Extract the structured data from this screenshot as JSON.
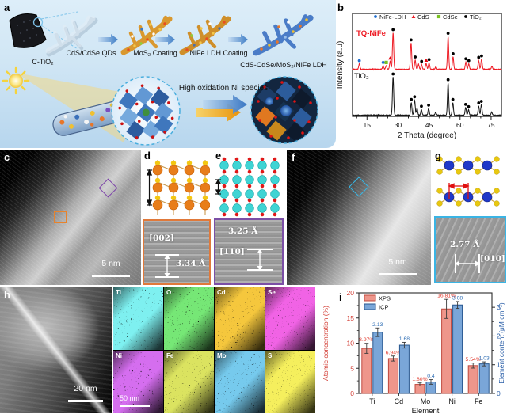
{
  "panel_a": {
    "label": "a",
    "precursor_label": "C-TiO₂",
    "step1_label": "CdS/CdSe QDs",
    "step2_label": "MoS₂ Coating",
    "step3_label": "NiFe LDH Coating",
    "product_label": "CdS-CdSe/MoS₂/NiFe LDH",
    "annotation": "High oxidation Ni species"
  },
  "panel_b": {
    "label": "b"
  },
  "panel_c": {
    "label": "c",
    "scale_bar": "5 nm"
  },
  "panel_d": {
    "label": "d",
    "plane": "[002]",
    "spacing": "3.34 Å"
  },
  "panel_e": {
    "label": "e",
    "plane": "[110]",
    "spacing": "3.25 Å"
  },
  "panel_f": {
    "label": "f",
    "scale_bar": "5 nm"
  },
  "panel_g": {
    "label": "g",
    "plane": "[010]",
    "spacing": "2.77 Å"
  },
  "panel_h": {
    "label": "h",
    "scale_bar": "20 nm",
    "maps": {
      "scale_bar": "50 nm",
      "tiles": [
        {
          "label": "Ti",
          "color": "#35dede"
        },
        {
          "label": "O",
          "color": "#2ecc2e"
        },
        {
          "label": "Cd",
          "color": "#e8920c"
        },
        {
          "label": "Se",
          "color": "#e020c8"
        },
        {
          "label": "Ni",
          "color": "#aa28dc"
        },
        {
          "label": "Fe",
          "color": "#b4c41e"
        },
        {
          "label": "Mo",
          "color": "#2e96d8"
        },
        {
          "label": "S",
          "color": "#e8dc1c"
        }
      ]
    }
  },
  "panel_i": {
    "label": "i"
  },
  "chart_data": [
    {
      "type": "line",
      "title": "XRD patterns",
      "xlabel": "2 Theta (degree)",
      "ylabel": "Intensity (a.u)",
      "xlim": [
        8,
        80
      ],
      "xticks": [
        15,
        30,
        45,
        60,
        75
      ],
      "grid": false,
      "legend_position": "top-inside",
      "legend": [
        {
          "label": "NiFe-LDH",
          "marker": "circle",
          "color": "#1f6fd0"
        },
        {
          "label": "CdS",
          "marker": "triangle",
          "color": "#e8000b"
        },
        {
          "label": "CdSe",
          "marker": "square",
          "color": "#7ac122"
        },
        {
          "label": "TiO₂",
          "marker": "circle",
          "color": "#000000"
        }
      ],
      "series": [
        {
          "name": "TQ-NiFe",
          "color": "#ee1c25",
          "peaks": [
            [
              11.3,
              0.15,
              "nife"
            ],
            [
              22.8,
              0.1,
              "nife"
            ],
            [
              24.3,
              0.1,
              "cdse"
            ],
            [
              26.2,
              0.22,
              "cds"
            ],
            [
              27.6,
              1.0,
              "tio2"
            ],
            [
              36.3,
              0.72,
              "tio2"
            ],
            [
              38.3,
              0.25,
              "tio2"
            ],
            [
              39.9,
              0.14,
              null
            ],
            [
              41.4,
              0.13,
              "tio2"
            ],
            [
              43.6,
              0.16,
              "cds"
            ],
            [
              45.0,
              0.18,
              "tio2"
            ],
            [
              48.3,
              0.07,
              null
            ],
            [
              54.2,
              0.9,
              "tio2"
            ],
            [
              56.6,
              0.34,
              "tio2"
            ],
            [
              62.8,
              0.2,
              "tio2"
            ],
            [
              64.2,
              0.15,
              "tio2"
            ],
            [
              69.0,
              0.24,
              "tio2"
            ],
            [
              70.4,
              0.28,
              "tio2"
            ],
            [
              75.4,
              0.08,
              null
            ]
          ]
        },
        {
          "name": "TiO₂",
          "color": "#141414",
          "peaks": [
            [
              27.6,
              1.0,
              "tio2"
            ],
            [
              36.4,
              0.33,
              "tio2"
            ],
            [
              38.0,
              0.4,
              "tio2"
            ],
            [
              39.2,
              0.18,
              null
            ],
            [
              41.3,
              0.15,
              "tio2"
            ],
            [
              44.8,
              0.18,
              "tio2"
            ],
            [
              48.2,
              0.08,
              null
            ],
            [
              54.2,
              0.85,
              "tio2"
            ],
            [
              56.5,
              0.33,
              "tio2"
            ],
            [
              62.7,
              0.2,
              "tio2"
            ],
            [
              64.1,
              0.14,
              "tio2"
            ],
            [
              69.0,
              0.24,
              "tio2"
            ],
            [
              70.3,
              0.28,
              "tio2"
            ],
            [
              75.3,
              0.08,
              null
            ]
          ]
        }
      ]
    },
    {
      "type": "bar",
      "categories": [
        "Ti",
        "Cd",
        "Mo",
        "Ni",
        "Fe"
      ],
      "xlabel": "Element",
      "left_axis": {
        "label": "Atomic concentration (%)",
        "color": "#d23b32",
        "ylim": [
          0,
          20
        ],
        "ticks": [
          0,
          5,
          10,
          15,
          20
        ]
      },
      "right_axis": {
        "label": "Element content (μM cm⁻²)",
        "color": "#2b5fa8",
        "ylim": [
          0,
          3.5
        ],
        "ticks": [
          0,
          1,
          2,
          3
        ]
      },
      "legend_position": "top-left-inside",
      "series": [
        {
          "name": "XPS",
          "axis": "left",
          "fill": "#ee968b",
          "edge": "#c0493e",
          "values": [
            8.97,
            6.94,
            1.8,
            16.81,
            5.54
          ],
          "errors": [
            1.0,
            0.5,
            0.3,
            1.9,
            0.5
          ],
          "labels": [
            "8.97%",
            "6.94%",
            "1.80%",
            "16.81%",
            "5.54%"
          ],
          "label_color": "#e03a2e"
        },
        {
          "name": "ICP",
          "axis": "right",
          "fill": "#7aa6d8",
          "edge": "#28578f",
          "values": [
            2.13,
            1.68,
            0.4,
            3.08,
            1.03
          ],
          "errors": [
            0.15,
            0.1,
            0.08,
            0.12,
            0.07
          ],
          "labels": [
            "2.13",
            "1.68",
            "0.4",
            "3.08",
            "1.03"
          ],
          "label_color": "#2e6db4"
        }
      ]
    }
  ]
}
